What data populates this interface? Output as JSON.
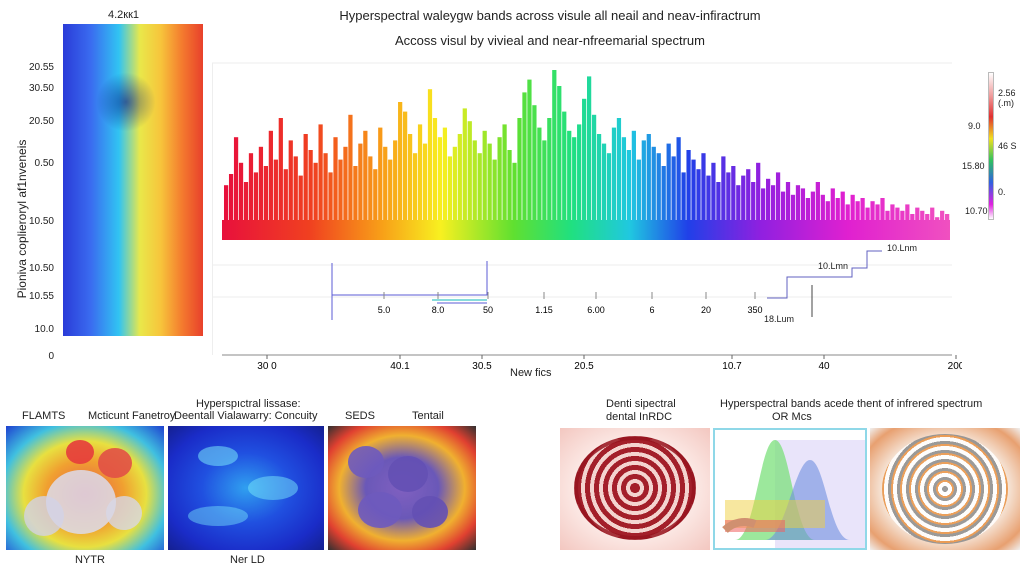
{
  "chart_data": {
    "type": "bar",
    "title": "Hyperspectral waleygw bands across visule all neail and neav-infiractrum",
    "subtitle": "Accoss visul by vivieal and near-nfreemarial spectrum",
    "ylabel": "Pioniva coplieroryl af1nveneis",
    "xlabel": "New fics",
    "xticks": [
      "30 0",
      "40.1",
      "30.5",
      "20.5",
      "10.7",
      "40",
      "200"
    ],
    "inner_ticks": [
      "5.0",
      "8.0",
      "50",
      "1.15",
      "6.00",
      "6",
      "20",
      "350"
    ],
    "heatmap_title": "4.2кк1",
    "heatmap_yticks": [
      "20.55",
      "30.50",
      "20.50",
      "0.50",
      "10.50",
      "10.50",
      "10.55",
      "10.0",
      "0"
    ],
    "colorbar_labels": [
      "2.56 (.m)",
      "9.0",
      "46 S",
      "15.80",
      "0.",
      "10.70"
    ],
    "annotations": [
      "10.Lnm",
      "10.Lmn",
      "18.Lum"
    ],
    "series": [
      {
        "values": [
          28,
          35,
          58,
          42,
          30,
          48,
          36,
          52,
          40,
          62,
          44,
          70,
          38,
          56,
          46,
          34,
          60,
          50,
          42,
          66,
          48,
          36,
          58,
          44,
          52,
          72,
          40,
          54,
          62,
          46,
          38,
          64,
          52,
          44,
          56,
          80,
          74,
          60,
          48,
          66,
          54,
          88,
          70,
          58,
          64,
          46,
          52,
          60,
          76,
          68,
          56,
          48,
          62,
          54,
          44,
          58,
          66,
          50,
          42,
          70,
          86,
          94,
          78,
          64,
          56,
          70,
          100,
          90,
          74,
          62,
          58,
          66,
          82,
          96,
          72,
          60,
          54,
          48,
          64,
          70,
          58,
          50,
          62,
          44,
          56,
          60,
          52,
          48,
          40,
          54,
          46,
          58,
          36,
          50,
          44,
          38,
          48,
          34,
          42,
          30,
          46,
          36,
          40,
          28,
          34,
          38,
          30,
          42,
          26,
          32,
          28,
          36,
          24,
          30,
          22,
          28,
          26,
          20,
          24,
          30,
          22,
          18,
          26,
          20,
          24,
          16,
          22,
          18,
          20,
          14,
          18,
          16,
          20,
          12,
          16,
          14,
          12,
          16,
          10,
          14,
          12,
          10,
          14,
          8,
          12,
          10
        ]
      }
    ]
  },
  "panels": {
    "p1_left_label": "FLAMTS",
    "p1_right_label": "Mcticunt Fanetroy",
    "p1_bottom_label": "NYTR",
    "p2_title_line1": "Hyperspıctral lissase:",
    "p2_title_line2": "Deentall Vialawarry: Concuity",
    "p2_bottom_label": "Ner LD",
    "p3_left_label": "SEDS",
    "p3_right_label": "Tentail",
    "p4_title_line1": "Denti sipectral",
    "p4_title_line2": "dental InRDC",
    "p5_title_line1": "Hyperspectral bands acede thent of infrered spectrum",
    "p5_title_line2": "OR Mcs"
  }
}
